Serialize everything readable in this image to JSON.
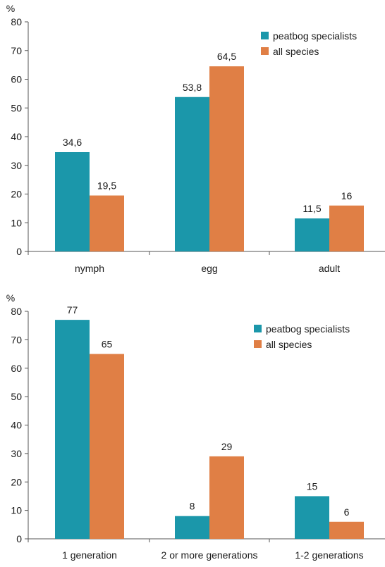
{
  "chart_data": [
    {
      "type": "bar",
      "ylabel": "%",
      "ylim": [
        0,
        80
      ],
      "yticks": [
        0,
        10,
        20,
        30,
        40,
        50,
        60,
        70,
        80
      ],
      "categories": [
        "nymph",
        "egg",
        "adult"
      ],
      "series": [
        {
          "name": "peatbog specialists",
          "color": "#1b97aa",
          "values": [
            34.6,
            53.8,
            11.5
          ],
          "labels": [
            "34,6",
            "53,8",
            "11,5"
          ]
        },
        {
          "name": "all species",
          "color": "#e07f45",
          "values": [
            19.5,
            64.5,
            16
          ],
          "labels": [
            "19,5",
            "64,5",
            "16"
          ]
        }
      ],
      "legend": "top-right",
      "grid": false
    },
    {
      "type": "bar",
      "ylabel": "%",
      "ylim": [
        0,
        80
      ],
      "yticks": [
        0,
        10,
        20,
        30,
        40,
        50,
        60,
        70,
        80
      ],
      "categories": [
        "1 generation",
        "2 or more generations",
        "1-2 generations"
      ],
      "series": [
        {
          "name": "peatbog specialists",
          "color": "#1b97aa",
          "values": [
            77,
            8,
            15
          ],
          "labels": [
            "77",
            "8",
            "15"
          ]
        },
        {
          "name": "all species",
          "color": "#e07f45",
          "values": [
            65,
            29,
            6
          ],
          "labels": [
            "65",
            "29",
            "6"
          ]
        }
      ],
      "legend": "top-right",
      "grid": false
    }
  ]
}
